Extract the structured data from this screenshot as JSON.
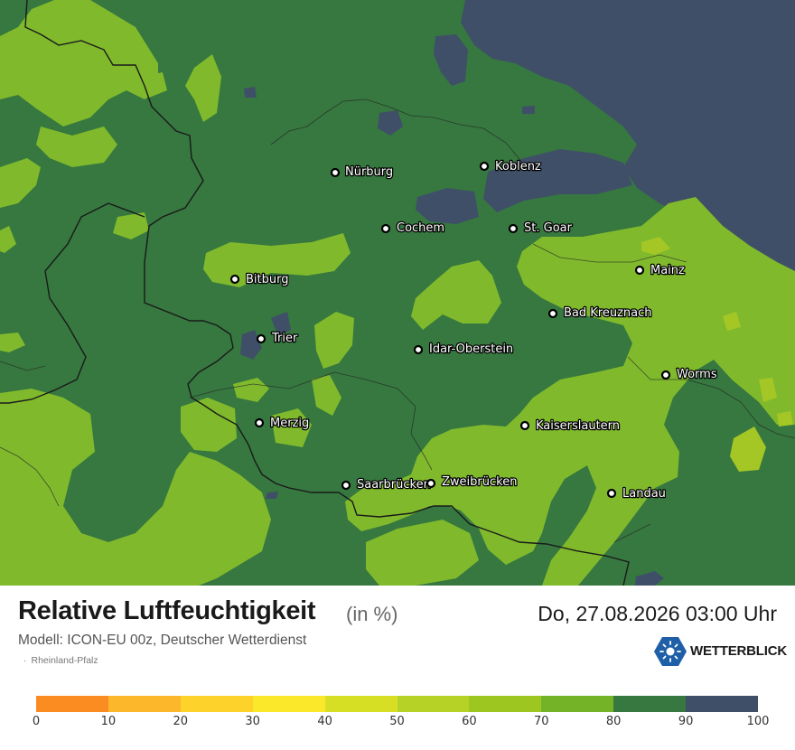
{
  "title": "Relative Luftfeuchtigkeit",
  "unit": "(in %)",
  "datetime": "Do, 27.08.2026 03:00 Uhr",
  "model": "Modell: ICON-EU 00z, Deutscher Wetterdienst",
  "region": "Rheinland-Pfalz",
  "brand": "WETTERBLICK",
  "colors": {
    "green_dark": "#36783f",
    "green_light": "#80ba2c",
    "slate": "#3f4f68",
    "yellow_green": "#a4c726",
    "border": "#1a1a1a"
  },
  "legend": {
    "ticks": [
      "0",
      "10",
      "20",
      "30",
      "40",
      "50",
      "60",
      "70",
      "80",
      "90",
      "100"
    ],
    "colors": [
      "#fb8c21",
      "#fdb72b",
      "#fcd22b",
      "#fce82a",
      "#d7df25",
      "#b6d226",
      "#9ec621",
      "#74b228",
      "#36783f",
      "#3f4f68"
    ]
  },
  "cities": [
    {
      "name": "Nürburg"
    },
    {
      "name": "Koblenz"
    },
    {
      "name": "Cochem"
    },
    {
      "name": "St. Goar"
    },
    {
      "name": "Mainz"
    },
    {
      "name": "Bitburg"
    },
    {
      "name": "Bad Kreuznach"
    },
    {
      "name": "Trier"
    },
    {
      "name": "Idar-Oberstein"
    },
    {
      "name": "Worms"
    },
    {
      "name": "Merzig"
    },
    {
      "name": "Kaiserslautern"
    },
    {
      "name": "Saarbrücken"
    },
    {
      "name": "Zweibrücken"
    },
    {
      "name": "Landau"
    }
  ]
}
